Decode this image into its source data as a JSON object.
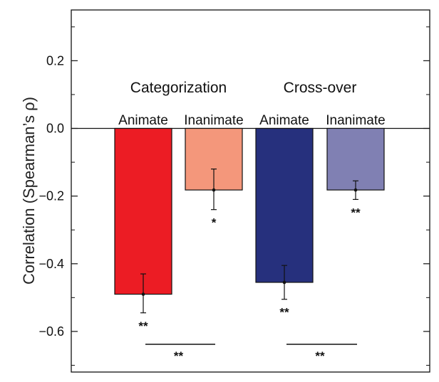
{
  "chart_data": {
    "type": "bar",
    "ylabel": "Correlation (Spearman’s ρ)",
    "ylim": [
      -0.72,
      0.35
    ],
    "yticks": [
      "0.2",
      "0.0",
      "−0.2",
      "−0.4",
      "−0.6"
    ],
    "ytick_values": [
      0.2,
      0.0,
      -0.2,
      -0.4,
      -0.6
    ],
    "groups": [
      {
        "label": "Categorization",
        "between_significance": "**"
      },
      {
        "label": "Cross-over",
        "between_significance": "**"
      }
    ],
    "bars": [
      {
        "group": "Categorization",
        "category": "Animate",
        "value": -0.49,
        "err_low": -0.545,
        "err_high": -0.43,
        "significance": "**",
        "color": "#ec1c24"
      },
      {
        "group": "Categorization",
        "category": "Inanimate",
        "value": -0.182,
        "err_low": -0.24,
        "err_high": -0.12,
        "significance": "*",
        "color": "#f4977b"
      },
      {
        "group": "Cross-over",
        "category": "Animate",
        "value": -0.455,
        "err_low": -0.505,
        "err_high": -0.405,
        "significance": "**",
        "color": "#26307d"
      },
      {
        "group": "Cross-over",
        "category": "Inanimate",
        "value": -0.182,
        "err_low": -0.21,
        "err_high": -0.155,
        "significance": "**",
        "color": "#8080b3"
      }
    ],
    "grid": false,
    "legend": "none"
  }
}
